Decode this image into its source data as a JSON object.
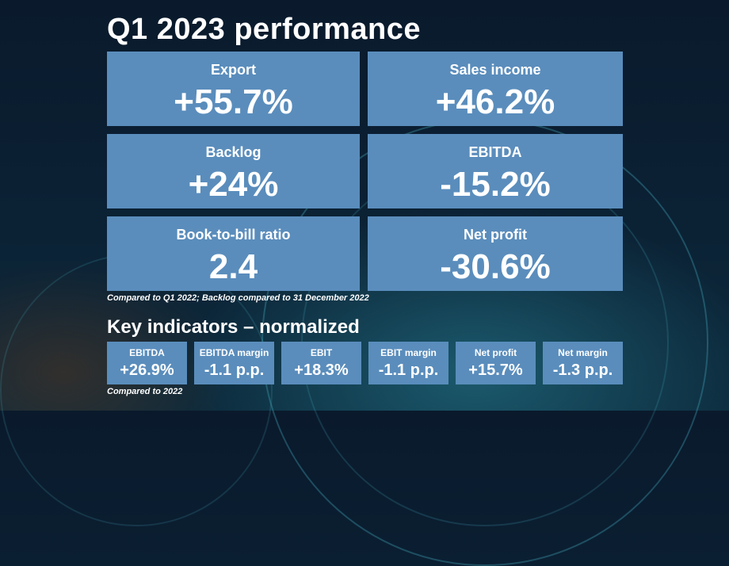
{
  "title": "Q1 2023 performance",
  "metrics": [
    {
      "label": "Export",
      "value": "+55.7%"
    },
    {
      "label": "Sales income",
      "value": "+46.2%"
    },
    {
      "label": "Backlog",
      "value": "+24%"
    },
    {
      "label": "EBITDA",
      "value": "-15.2%"
    },
    {
      "label": "Book-to-bill ratio",
      "value": "2.4"
    },
    {
      "label": "Net profit",
      "value": "-30.6%"
    }
  ],
  "metrics_note": "Compared to Q1 2022; Backlog compared to 31 December 2022",
  "key_indicators_title": "Key indicators – normalized",
  "key_indicators": [
    {
      "label": "EBITDA",
      "value": "+26.9%"
    },
    {
      "label": "EBITDA margin",
      "value": "-1.1 p.p."
    },
    {
      "label": "EBIT",
      "value": "+18.3%"
    },
    {
      "label": "EBIT margin",
      "value": "-1.1 p.p."
    },
    {
      "label": "Net profit",
      "value": "+15.7%"
    },
    {
      "label": "Net margin",
      "value": "-1.3 p.p."
    }
  ],
  "key_indicators_note": "Compared to 2022",
  "colors": {
    "card": "#5a8dbc",
    "background": "#0b2033",
    "text": "#ffffff"
  }
}
